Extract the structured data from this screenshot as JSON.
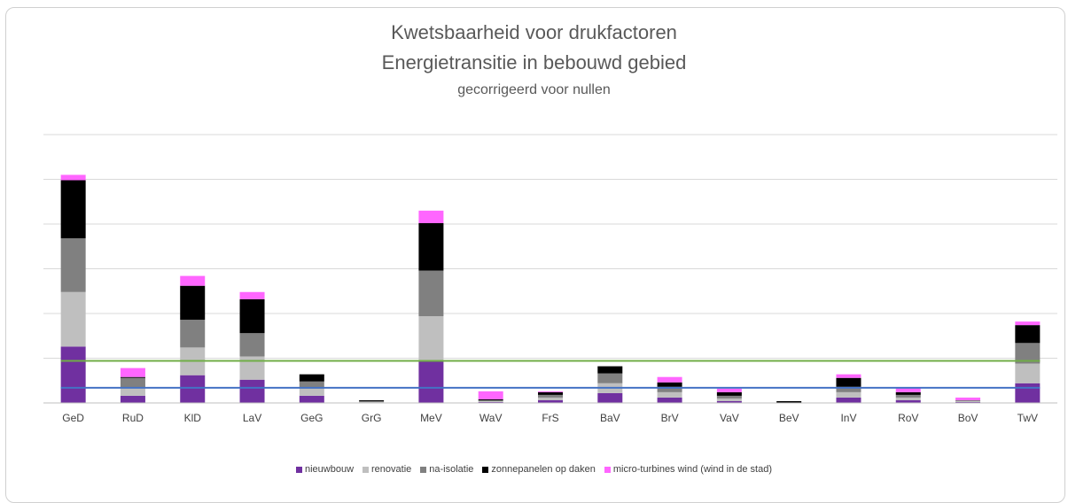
{
  "chart_data": {
    "type": "bar",
    "stacked": true,
    "title": "Kwetsbaarheid voor drukfactoren",
    "subtitle": "Energietransitie in bebouwd gebied",
    "subsubtitle": "gecorrigeerd voor nullen",
    "categories": [
      "GeD",
      "RuD",
      "KlD",
      "LaV",
      "GeG",
      "GrG",
      "MeV",
      "WaV",
      "FrS",
      "BaV",
      "BrV",
      "VaV",
      "BeV",
      "InV",
      "RoV",
      "BoV",
      "TwV"
    ],
    "series": [
      {
        "name": "nieuwbouw",
        "color": "#7030a0",
        "values": [
          1.26,
          0.16,
          0.62,
          0.52,
          0.16,
          0.0,
          0.94,
          0.02,
          0.06,
          0.22,
          0.12,
          0.04,
          0.0,
          0.12,
          0.06,
          0.02,
          0.44
        ]
      },
      {
        "name": "renovatie",
        "color": "#bfbfbf",
        "values": [
          1.22,
          0.18,
          0.62,
          0.52,
          0.16,
          0.02,
          1.0,
          0.02,
          0.06,
          0.22,
          0.12,
          0.06,
          0.0,
          0.12,
          0.06,
          0.02,
          0.44
        ]
      },
      {
        "name": "na-isolatie",
        "color": "#808080",
        "values": [
          1.2,
          0.22,
          0.62,
          0.52,
          0.16,
          0.02,
          1.02,
          0.02,
          0.06,
          0.22,
          0.12,
          0.06,
          0.0,
          0.12,
          0.06,
          0.02,
          0.46
        ]
      },
      {
        "name": "zonnepanelen op daken",
        "color": "#000000",
        "values": [
          1.3,
          0.02,
          0.76,
          0.76,
          0.16,
          0.02,
          1.06,
          0.02,
          0.06,
          0.16,
          0.1,
          0.08,
          0.04,
          0.2,
          0.06,
          0.0,
          0.4
        ]
      },
      {
        "name": "micro-turbines wind (wind in de stad)",
        "color": "#ff66ff",
        "values": [
          0.12,
          0.2,
          0.22,
          0.16,
          0.0,
          0.0,
          0.28,
          0.18,
          0.02,
          0.0,
          0.12,
          0.08,
          0.0,
          0.08,
          0.1,
          0.06,
          0.08
        ]
      }
    ],
    "ylim": [
      0,
      6
    ],
    "reference_lines": [
      {
        "color": "#70ad47",
        "value": 0.94
      },
      {
        "color": "#4472c4",
        "value": 0.34
      }
    ],
    "grid": true,
    "legend_position": "bottom"
  }
}
